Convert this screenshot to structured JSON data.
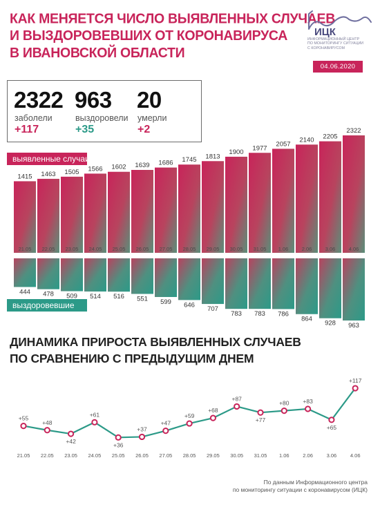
{
  "header": {
    "title_lines": [
      "КАК МЕНЯЕТСЯ ЧИСЛО ВЫЯВЛЕННЫХ СЛУЧАЕВ",
      "И ВЫЗДОРОВЕВШИХ ОТ КОРОНАВИРУСА",
      "В ИВАНОВСКОЙ ОБЛАСТИ"
    ],
    "logo_text": "ИЦК",
    "logo_caption": [
      "ИНФОРМАЦИОННЫЙ ЦЕНТР",
      "ПО МОНИТОРИНГУ СИТУАЦИИ",
      "С КОРОНАВИРУСОМ"
    ],
    "date": "04.06.2020"
  },
  "colors": {
    "accent": "#c8245a",
    "teal": "#2c9a88"
  },
  "stats": {
    "sick": {
      "value": "2322",
      "label": "заболели",
      "delta": "+117"
    },
    "recovered": {
      "value": "963",
      "label": "выздоровели",
      "delta": "+35"
    },
    "died": {
      "value": "20",
      "label": "умерли",
      "delta": "+2"
    }
  },
  "chart_data": [
    {
      "type": "bar",
      "categories": [
        "21.05",
        "22.05",
        "23.05",
        "24.05",
        "25.05",
        "26.05",
        "27.05",
        "28.05",
        "29.05",
        "30.05",
        "31.05",
        "1.06",
        "2.06",
        "3.06",
        "4.06"
      ],
      "series": [
        {
          "name": "выявленные случаи",
          "values": [
            1415,
            1463,
            1505,
            1566,
            1602,
            1639,
            1686,
            1745,
            1813,
            1900,
            1977,
            2057,
            2140,
            2205,
            2322
          ]
        },
        {
          "name": "выздоровевшие",
          "values": [
            444,
            478,
            509,
            514,
            516,
            551,
            599,
            646,
            707,
            783,
            783,
            786,
            864,
            928,
            963
          ]
        }
      ]
    },
    {
      "type": "line",
      "title_lines": [
        "ДИНАМИКА ПРИРОСТА ВЫЯВЛЕННЫХ СЛУЧАЕВ",
        "ПО СРАВНЕНИЮ С ПРЕДЫДУЩИМ ДНЕМ"
      ],
      "categories": [
        "21.05",
        "22.05",
        "23.05",
        "24.05",
        "25.05",
        "26.05",
        "27.05",
        "28.05",
        "29.05",
        "30.05",
        "31.05",
        "1.06",
        "2.06",
        "3.06",
        "4.06"
      ],
      "values": [
        55,
        48,
        42,
        61,
        36,
        37,
        47,
        59,
        68,
        87,
        77,
        80,
        83,
        65,
        117
      ],
      "labels": [
        "+55",
        "+48",
        "+42",
        "+61",
        "+36",
        "+37",
        "+47",
        "+59",
        "+68",
        "+87",
        "+77",
        "+80",
        "+83",
        "+65",
        "+117"
      ]
    }
  ],
  "footer": {
    "lines": [
      "По данным Информационного центра",
      "по мониторингу ситуации с коронавирусом (ИЦК)"
    ]
  }
}
